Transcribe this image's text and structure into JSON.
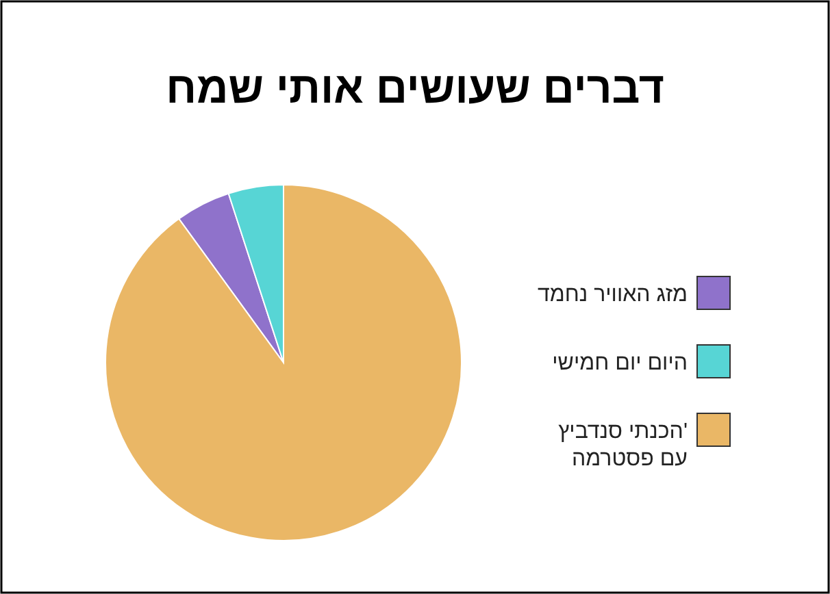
{
  "chart_data": {
    "type": "pie",
    "title": "דברים שעושים אותי שמח",
    "categories": [
      "מזג האוויר נחמד",
      "היום יום חמישי",
      "הכנתי סנדביץ' עם פסטרמה"
    ],
    "values": [
      5,
      5,
      90
    ],
    "colors": [
      "#8f72cb",
      "#57d5d5",
      "#eab766"
    ],
    "legend": "right"
  }
}
